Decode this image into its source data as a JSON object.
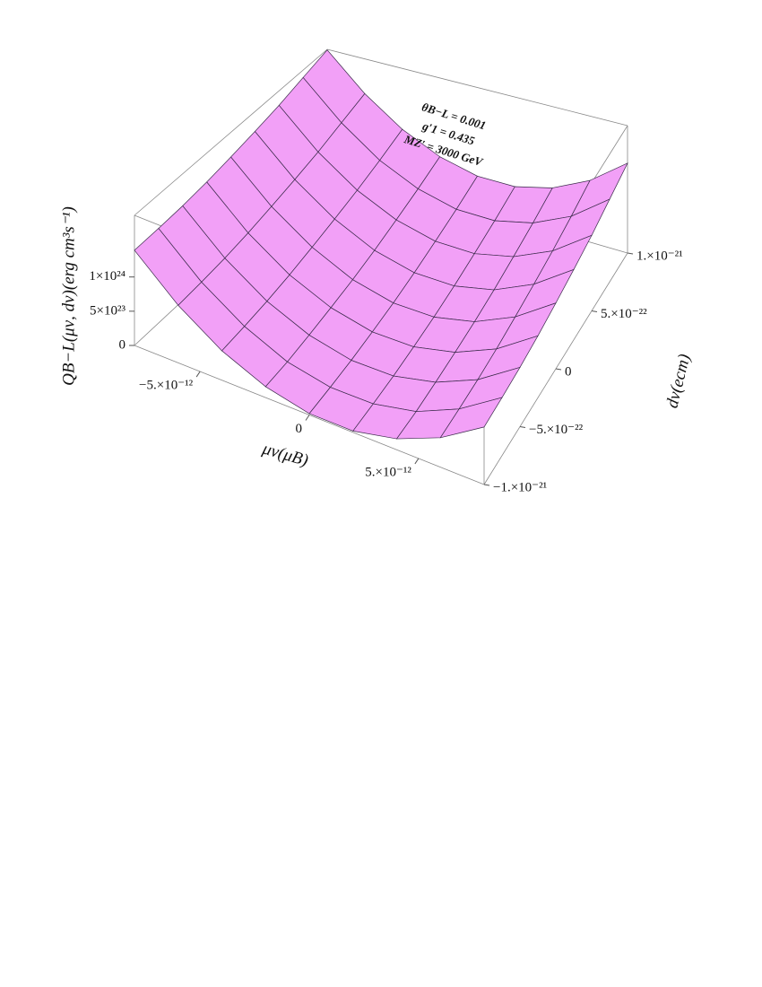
{
  "chart_data": {
    "type": "surface",
    "annotations": [
      "θB−L = 0.001",
      "g′1 = 0.435",
      "MZ′ = 3000 GeV"
    ],
    "xlabel": "μν(μB)",
    "ylabel": "dν(ecm)",
    "zlabel": "QB−L(μν, dν)(erg cm³s⁻¹)",
    "color": "#f2a0f7",
    "x": [
      -8e-12,
      -6e-12,
      -4e-12,
      -2e-12,
      0,
      2e-12,
      4e-12,
      6e-12,
      8e-12
    ],
    "y": [
      -1e-21,
      -7.5e-22,
      -5e-22,
      -2.5e-22,
      0,
      2.5e-22,
      5e-22,
      7.5e-22,
      1e-21
    ],
    "z": [
      [
        1.39e+24,
        1.4e+24,
        1.42e+24,
        1.46e+24,
        1.52e+24,
        1.59e+24,
        1.67e+24,
        1.78e+24,
        1.89e+24
      ],
      [
        8.4e+23,
        8.5e+23,
        8.7e+23,
        9.1e+23,
        9.7e+23,
        1.04e+24,
        1.12e+24,
        1.23e+24,
        1.34e+24
      ],
      [
        4.3e+23,
        4.4e+23,
        4.6e+23,
        5e+23,
        5.6e+23,
        6.3e+23,
        7.1e+23,
        8.1e+23,
        9.3e+23
      ],
      [
        1.6e+23,
        1.6e+23,
        1.9e+23,
        2.3e+23,
        2.8e+23,
        3.5e+23,
        4.4e+23,
        5.4e+23,
        6.6e+23
      ],
      [
        2e+22,
        3e+22,
        5e+22,
        9e+22,
        1.4e+23,
        2.1e+23,
        3e+23,
        4e+23,
        5.2e+23
      ],
      [
        2e+22,
        3e+22,
        5e+22,
        9e+22,
        1.4e+23,
        2.1e+23,
        3e+23,
        4e+23,
        5.2e+23
      ],
      [
        1.6e+23,
        1.6e+23,
        1.9e+23,
        2.3e+23,
        2.8e+23,
        3.5e+23,
        4.4e+23,
        5.4e+23,
        6.6e+23
      ],
      [
        4.3e+23,
        4.4e+23,
        4.6e+23,
        5e+23,
        5.6e+23,
        6.3e+23,
        7.1e+23,
        8.1e+23,
        9.3e+23
      ],
      [
        8.4e+23,
        8.5e+23,
        8.7e+23,
        9.1e+23,
        9.7e+23,
        1.04e+24,
        1.12e+24,
        1.23e+24,
        1.34e+24
      ]
    ],
    "xlim": [
      -8e-12,
      8e-12
    ],
    "ylim": [
      -1e-21,
      1e-21
    ],
    "zlim": [
      0,
      1.9e+24
    ],
    "xticks": [
      {
        "value": -5e-12,
        "label": "−5.×10⁻¹²"
      },
      0,
      {
        "value": 5e-12,
        "label": "5.×10⁻¹²"
      }
    ],
    "yticks": [
      {
        "value": -1e-21,
        "label": "−1.×10⁻²¹"
      },
      {
        "value": -5e-22,
        "label": "−5.×10⁻²²"
      },
      0,
      {
        "value": 5e-22,
        "label": "5.×10⁻²²"
      },
      {
        "value": 1e-21,
        "label": "1.×10⁻²¹"
      }
    ],
    "zticks": [
      0,
      {
        "value": 5e+23,
        "label": "5×10²³"
      },
      {
        "value": 1e+24,
        "label": "1×10²⁴"
      }
    ]
  }
}
